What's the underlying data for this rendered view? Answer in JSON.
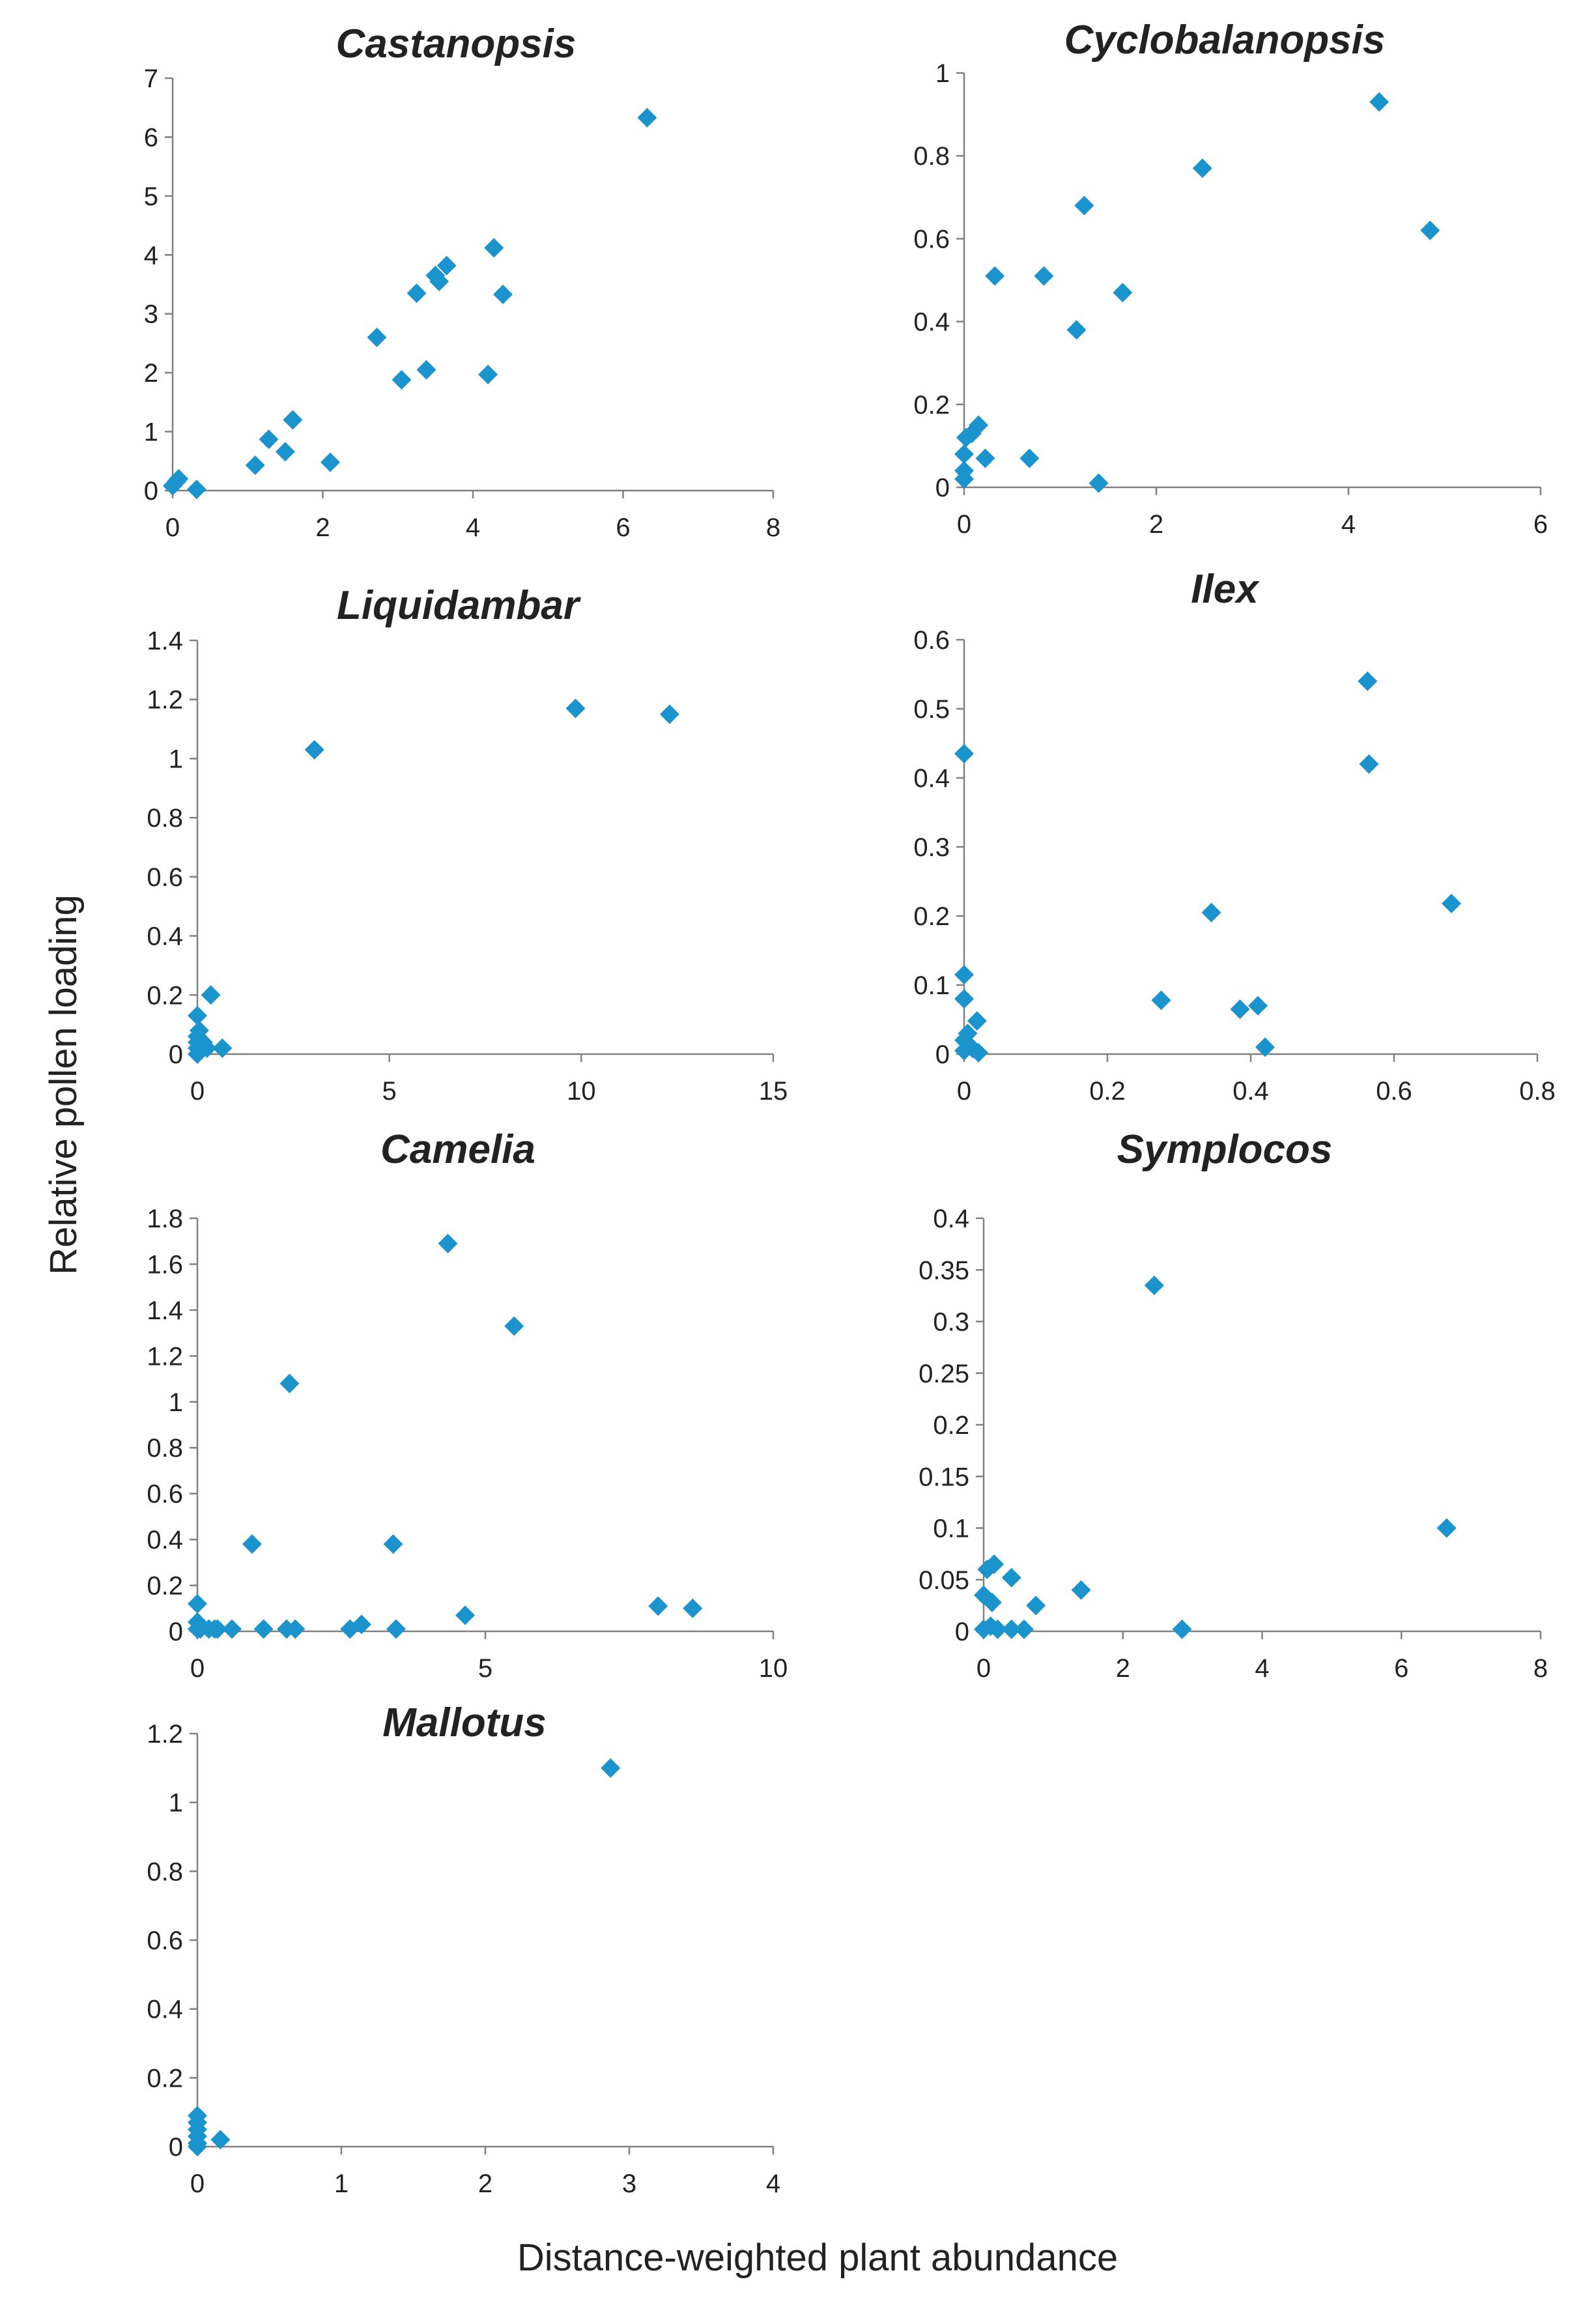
{
  "colors": {
    "marker": "#1b93cc",
    "axis": "#808080",
    "text": "#222222"
  },
  "figure": {
    "ylabel": "Relative pollen loading",
    "xlabel": "Distance-weighted plant abundance"
  },
  "chart_data": [
    {
      "type": "scatter",
      "title": "Castanopsis",
      "marker": "diamond",
      "xlim": [
        0,
        8
      ],
      "ylim": [
        0,
        7
      ],
      "xticks": [
        0,
        2,
        4,
        6,
        8
      ],
      "yticks": [
        0,
        1,
        2,
        3,
        4,
        5,
        6,
        7
      ],
      "tick_labels_x": [
        "0",
        "2",
        "4",
        "6",
        "8"
      ],
      "tick_labels_y": [
        "0",
        "1",
        "2",
        "3",
        "4",
        "5",
        "6",
        "7"
      ],
      "points": [
        [
          0,
          0.08
        ],
        [
          0.05,
          0.15
        ],
        [
          0.08,
          0.2
        ],
        [
          0.32,
          0.02
        ],
        [
          1.1,
          0.43
        ],
        [
          1.28,
          0.87
        ],
        [
          1.5,
          0.66
        ],
        [
          1.6,
          1.2
        ],
        [
          2.1,
          0.48
        ],
        [
          2.72,
          2.6
        ],
        [
          3.05,
          1.88
        ],
        [
          3.25,
          3.35
        ],
        [
          3.38,
          2.05
        ],
        [
          3.5,
          3.65
        ],
        [
          3.55,
          3.55
        ],
        [
          3.65,
          3.82
        ],
        [
          4.2,
          1.97
        ],
        [
          4.28,
          4.12
        ],
        [
          4.4,
          3.33
        ],
        [
          6.32,
          6.33
        ]
      ]
    },
    {
      "type": "scatter",
      "title": "Cyclobalanopsis",
      "marker": "diamond",
      "xlim": [
        0,
        6
      ],
      "ylim": [
        0,
        1
      ],
      "xticks": [
        0,
        2,
        4,
        6
      ],
      "yticks": [
        0,
        0.2,
        0.4,
        0.6,
        0.8,
        1
      ],
      "tick_labels_x": [
        "0",
        "2",
        "4",
        "6"
      ],
      "tick_labels_y": [
        "0",
        "0.2",
        "0.4",
        "0.6",
        "0.8",
        "1"
      ],
      "points": [
        [
          0,
          0.02
        ],
        [
          0,
          0.04
        ],
        [
          0,
          0.08
        ],
        [
          0.02,
          0.12
        ],
        [
          0.08,
          0.13
        ],
        [
          0.15,
          0.15
        ],
        [
          0.22,
          0.07
        ],
        [
          0.32,
          0.51
        ],
        [
          0.68,
          0.07
        ],
        [
          0.83,
          0.51
        ],
        [
          1.17,
          0.38
        ],
        [
          1.25,
          0.68
        ],
        [
          1.4,
          0.01
        ],
        [
          1.65,
          0.47
        ],
        [
          2.48,
          0.77
        ],
        [
          4.32,
          0.93
        ],
        [
          4.85,
          0.62
        ]
      ]
    },
    {
      "type": "scatter",
      "title": "Liquidambar",
      "marker": "diamond",
      "xlim": [
        0,
        15
      ],
      "ylim": [
        0,
        1.4
      ],
      "xticks": [
        0,
        5,
        10,
        15
      ],
      "yticks": [
        0,
        0.2,
        0.4,
        0.6,
        0.8,
        1,
        1.2,
        1.4
      ],
      "tick_labels_x": [
        "0",
        "5",
        "10",
        "15"
      ],
      "tick_labels_y": [
        "0",
        "0.2",
        "0.4",
        "0.6",
        "0.8",
        "1",
        "1.2",
        "1.4"
      ],
      "points": [
        [
          0,
          0
        ],
        [
          0,
          0.02
        ],
        [
          0,
          0.04
        ],
        [
          0,
          0.06
        ],
        [
          0,
          0.13
        ],
        [
          0.05,
          0.08
        ],
        [
          0.15,
          0.04
        ],
        [
          0.25,
          0.02
        ],
        [
          0.35,
          0.2
        ],
        [
          0.65,
          0.02
        ],
        [
          3.05,
          1.03
        ],
        [
          9.85,
          1.17
        ],
        [
          12.3,
          1.15
        ]
      ]
    },
    {
      "type": "scatter",
      "title": "Ilex",
      "marker": "diamond",
      "xlim": [
        0,
        0.8
      ],
      "ylim": [
        0,
        0.6
      ],
      "xticks": [
        0,
        0.2,
        0.4,
        0.6,
        0.8
      ],
      "yticks": [
        0,
        0.1,
        0.2,
        0.3,
        0.4,
        0.5,
        0.6
      ],
      "tick_labels_x": [
        "0",
        "0.2",
        "0.4",
        "0.6",
        "0.8"
      ],
      "tick_labels_y": [
        "0",
        "0.1",
        "0.2",
        "0.3",
        "0.4",
        "0.5",
        "0.6"
      ],
      "points": [
        [
          0,
          0.005
        ],
        [
          0,
          0.02
        ],
        [
          0,
          0.08
        ],
        [
          0,
          0.115
        ],
        [
          0,
          0.435
        ],
        [
          0.005,
          0.03
        ],
        [
          0.012,
          0.008
        ],
        [
          0.018,
          0.048
        ],
        [
          0.02,
          0.002
        ],
        [
          0.275,
          0.078
        ],
        [
          0.345,
          0.205
        ],
        [
          0.385,
          0.065
        ],
        [
          0.41,
          0.07
        ],
        [
          0.42,
          0.01
        ],
        [
          0.563,
          0.54
        ],
        [
          0.565,
          0.42
        ],
        [
          0.68,
          0.218
        ]
      ]
    },
    {
      "type": "scatter",
      "title": "Camelia",
      "marker": "diamond",
      "xlim": [
        0,
        10
      ],
      "ylim": [
        0,
        1.8
      ],
      "xticks": [
        0,
        5,
        10
      ],
      "yticks": [
        0,
        0.2,
        0.4,
        0.6,
        0.8,
        1,
        1.2,
        1.4,
        1.6,
        1.8
      ],
      "tick_labels_x": [
        "0",
        "5",
        "10"
      ],
      "tick_labels_y": [
        "0",
        "0.2",
        "0.4",
        "0.6",
        "0.8",
        "1",
        "1.2",
        "1.4",
        "1.6",
        "1.8"
      ],
      "points": [
        [
          0,
          0.01
        ],
        [
          0,
          0.04
        ],
        [
          0,
          0.12
        ],
        [
          0.05,
          0.01
        ],
        [
          0.2,
          0.01
        ],
        [
          0.3,
          0.01
        ],
        [
          0.35,
          0.01
        ],
        [
          0.6,
          0.01
        ],
        [
          0.95,
          0.38
        ],
        [
          1.15,
          0.01
        ],
        [
          1.55,
          0.01
        ],
        [
          1.6,
          1.08
        ],
        [
          1.7,
          0.01
        ],
        [
          2.65,
          0.01
        ],
        [
          2.85,
          0.03
        ],
        [
          3.4,
          0.38
        ],
        [
          3.45,
          0.01
        ],
        [
          4.35,
          1.69
        ],
        [
          4.65,
          0.07
        ],
        [
          5.5,
          1.33
        ],
        [
          8.0,
          0.11
        ],
        [
          8.6,
          0.1
        ]
      ]
    },
    {
      "type": "scatter",
      "title": "Symplocos",
      "marker": "diamond",
      "xlim": [
        0,
        8
      ],
      "ylim": [
        0,
        0.4
      ],
      "xticks": [
        0,
        2,
        4,
        6,
        8
      ],
      "yticks": [
        0,
        0.05,
        0.1,
        0.15,
        0.2,
        0.25,
        0.3,
        0.35,
        0.4
      ],
      "tick_labels_x": [
        "0",
        "2",
        "4",
        "6",
        "8"
      ],
      "tick_labels_y": [
        "0",
        "0.05",
        "0.1",
        "0.15",
        "0.2",
        "0.25",
        "0.3",
        "0.35",
        "0.4"
      ],
      "points": [
        [
          0,
          0.002
        ],
        [
          0,
          0.035
        ],
        [
          0.05,
          0.06
        ],
        [
          0.1,
          0.005
        ],
        [
          0.12,
          0.028
        ],
        [
          0.15,
          0.065
        ],
        [
          0.2,
          0.002
        ],
        [
          0.4,
          0.002
        ],
        [
          0.4,
          0.052
        ],
        [
          0.58,
          0.002
        ],
        [
          0.75,
          0.025
        ],
        [
          1.4,
          0.04
        ],
        [
          2.45,
          0.335
        ],
        [
          2.85,
          0.002
        ],
        [
          6.65,
          0.1
        ]
      ]
    },
    {
      "type": "scatter",
      "title": "Mallotus",
      "marker": "diamond",
      "xlim": [
        0,
        4
      ],
      "ylim": [
        0,
        1.2
      ],
      "xticks": [
        0,
        1,
        2,
        3,
        4
      ],
      "yticks": [
        0,
        0.2,
        0.4,
        0.6,
        0.8,
        1,
        1.2
      ],
      "tick_labels_x": [
        "0",
        "1",
        "2",
        "3",
        "4"
      ],
      "tick_labels_y": [
        "0",
        "0.2",
        "0.4",
        "0.6",
        "0.8",
        "1",
        "1.2"
      ],
      "points": [
        [
          0,
          0
        ],
        [
          0,
          0.01
        ],
        [
          0,
          0.03
        ],
        [
          0,
          0.05
        ],
        [
          0,
          0.07
        ],
        [
          0,
          0.09
        ],
        [
          0.16,
          0.02
        ],
        [
          2.87,
          1.1
        ]
      ]
    }
  ]
}
